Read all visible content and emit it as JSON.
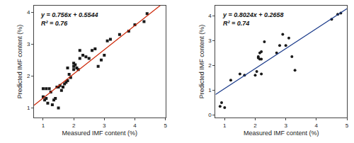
{
  "chart_data": [
    {
      "type": "scatter",
      "xlabel": "Measured IMF content (%)",
      "ylabel": "Predicted IMF content (%)",
      "annotations": [
        "y = 0.756x + 0.5544",
        "R² = 0.76"
      ],
      "xlim": [
        0.7,
        5.0
      ],
      "ylim": [
        0.7,
        4.2
      ],
      "xticks": [
        1,
        2,
        3,
        4,
        5
      ],
      "yticks": [
        1,
        2,
        3,
        4
      ],
      "grid": false,
      "series": [
        {
          "type": "scatter",
          "marker": "square",
          "color": "#1a1a1a",
          "x": [
            1.0,
            1.0,
            1.05,
            1.1,
            1.1,
            1.15,
            1.2,
            1.25,
            1.3,
            1.35,
            1.4,
            1.45,
            1.5,
            1.5,
            1.55,
            1.6,
            1.65,
            1.7,
            1.75,
            1.8,
            1.8,
            1.85,
            1.9,
            2.0,
            2.0,
            2.0,
            2.05,
            2.1,
            2.15,
            2.2,
            2.2,
            2.3,
            2.4,
            2.5,
            2.6,
            2.7,
            2.8,
            2.9,
            3.0,
            3.1,
            3.2,
            3.5,
            3.8,
            4.0,
            4.3,
            4.4
          ],
          "values": [
            1.35,
            1.6,
            1.25,
            1.3,
            1.6,
            1.15,
            1.6,
            1.5,
            1.1,
            1.25,
            1.3,
            1.65,
            1.0,
            1.65,
            1.7,
            1.55,
            1.65,
            1.75,
            1.8,
            1.85,
            2.25,
            2.05,
            1.95,
            2.2,
            2.3,
            2.4,
            2.35,
            2.25,
            2.2,
            2.55,
            2.8,
            2.65,
            2.6,
            2.55,
            2.8,
            2.85,
            2.3,
            2.5,
            2.65,
            3.1,
            3.15,
            3.3,
            3.4,
            3.6,
            3.7,
            3.95
          ]
        },
        {
          "type": "line",
          "line_style": "solid",
          "color": "#cc2200",
          "slope": 0.756,
          "intercept": 0.5544
        }
      ]
    },
    {
      "type": "scatter",
      "xlabel": "Measured IMF content (%)",
      "ylabel": "Predicted IMF content (%)",
      "annotations": [
        "y = 0.8024x + 0.2658",
        "R² = 0.74"
      ],
      "xlim": [
        0.7,
        5.0
      ],
      "ylim": [
        -0.1,
        4.4
      ],
      "xticks": [
        1,
        2,
        3,
        4,
        5
      ],
      "yticks": [
        0,
        1,
        2,
        3,
        4
      ],
      "grid": false,
      "series": [
        {
          "type": "scatter",
          "marker": "circle",
          "color": "#1a1a1a",
          "x": [
            0.85,
            0.9,
            1.0,
            1.2,
            1.5,
            1.65,
            2.0,
            2.05,
            2.1,
            2.1,
            2.15,
            2.15,
            2.2,
            2.2,
            2.2,
            2.3,
            2.7,
            2.8,
            2.9,
            3.0,
            3.1,
            3.2,
            3.3,
            4.5,
            4.7,
            4.8
          ],
          "values": [
            0.35,
            0.5,
            0.3,
            1.4,
            1.65,
            1.6,
            1.6,
            1.75,
            2.3,
            2.35,
            2.25,
            2.5,
            2.55,
            2.25,
            1.65,
            2.95,
            2.5,
            2.8,
            3.25,
            2.8,
            3.1,
            2.35,
            1.8,
            3.85,
            4.05,
            4.1
          ]
        },
        {
          "type": "line",
          "line_style": "solid",
          "color": "#1a3a8a",
          "slope": 0.8024,
          "intercept": 0.2658
        }
      ]
    }
  ]
}
